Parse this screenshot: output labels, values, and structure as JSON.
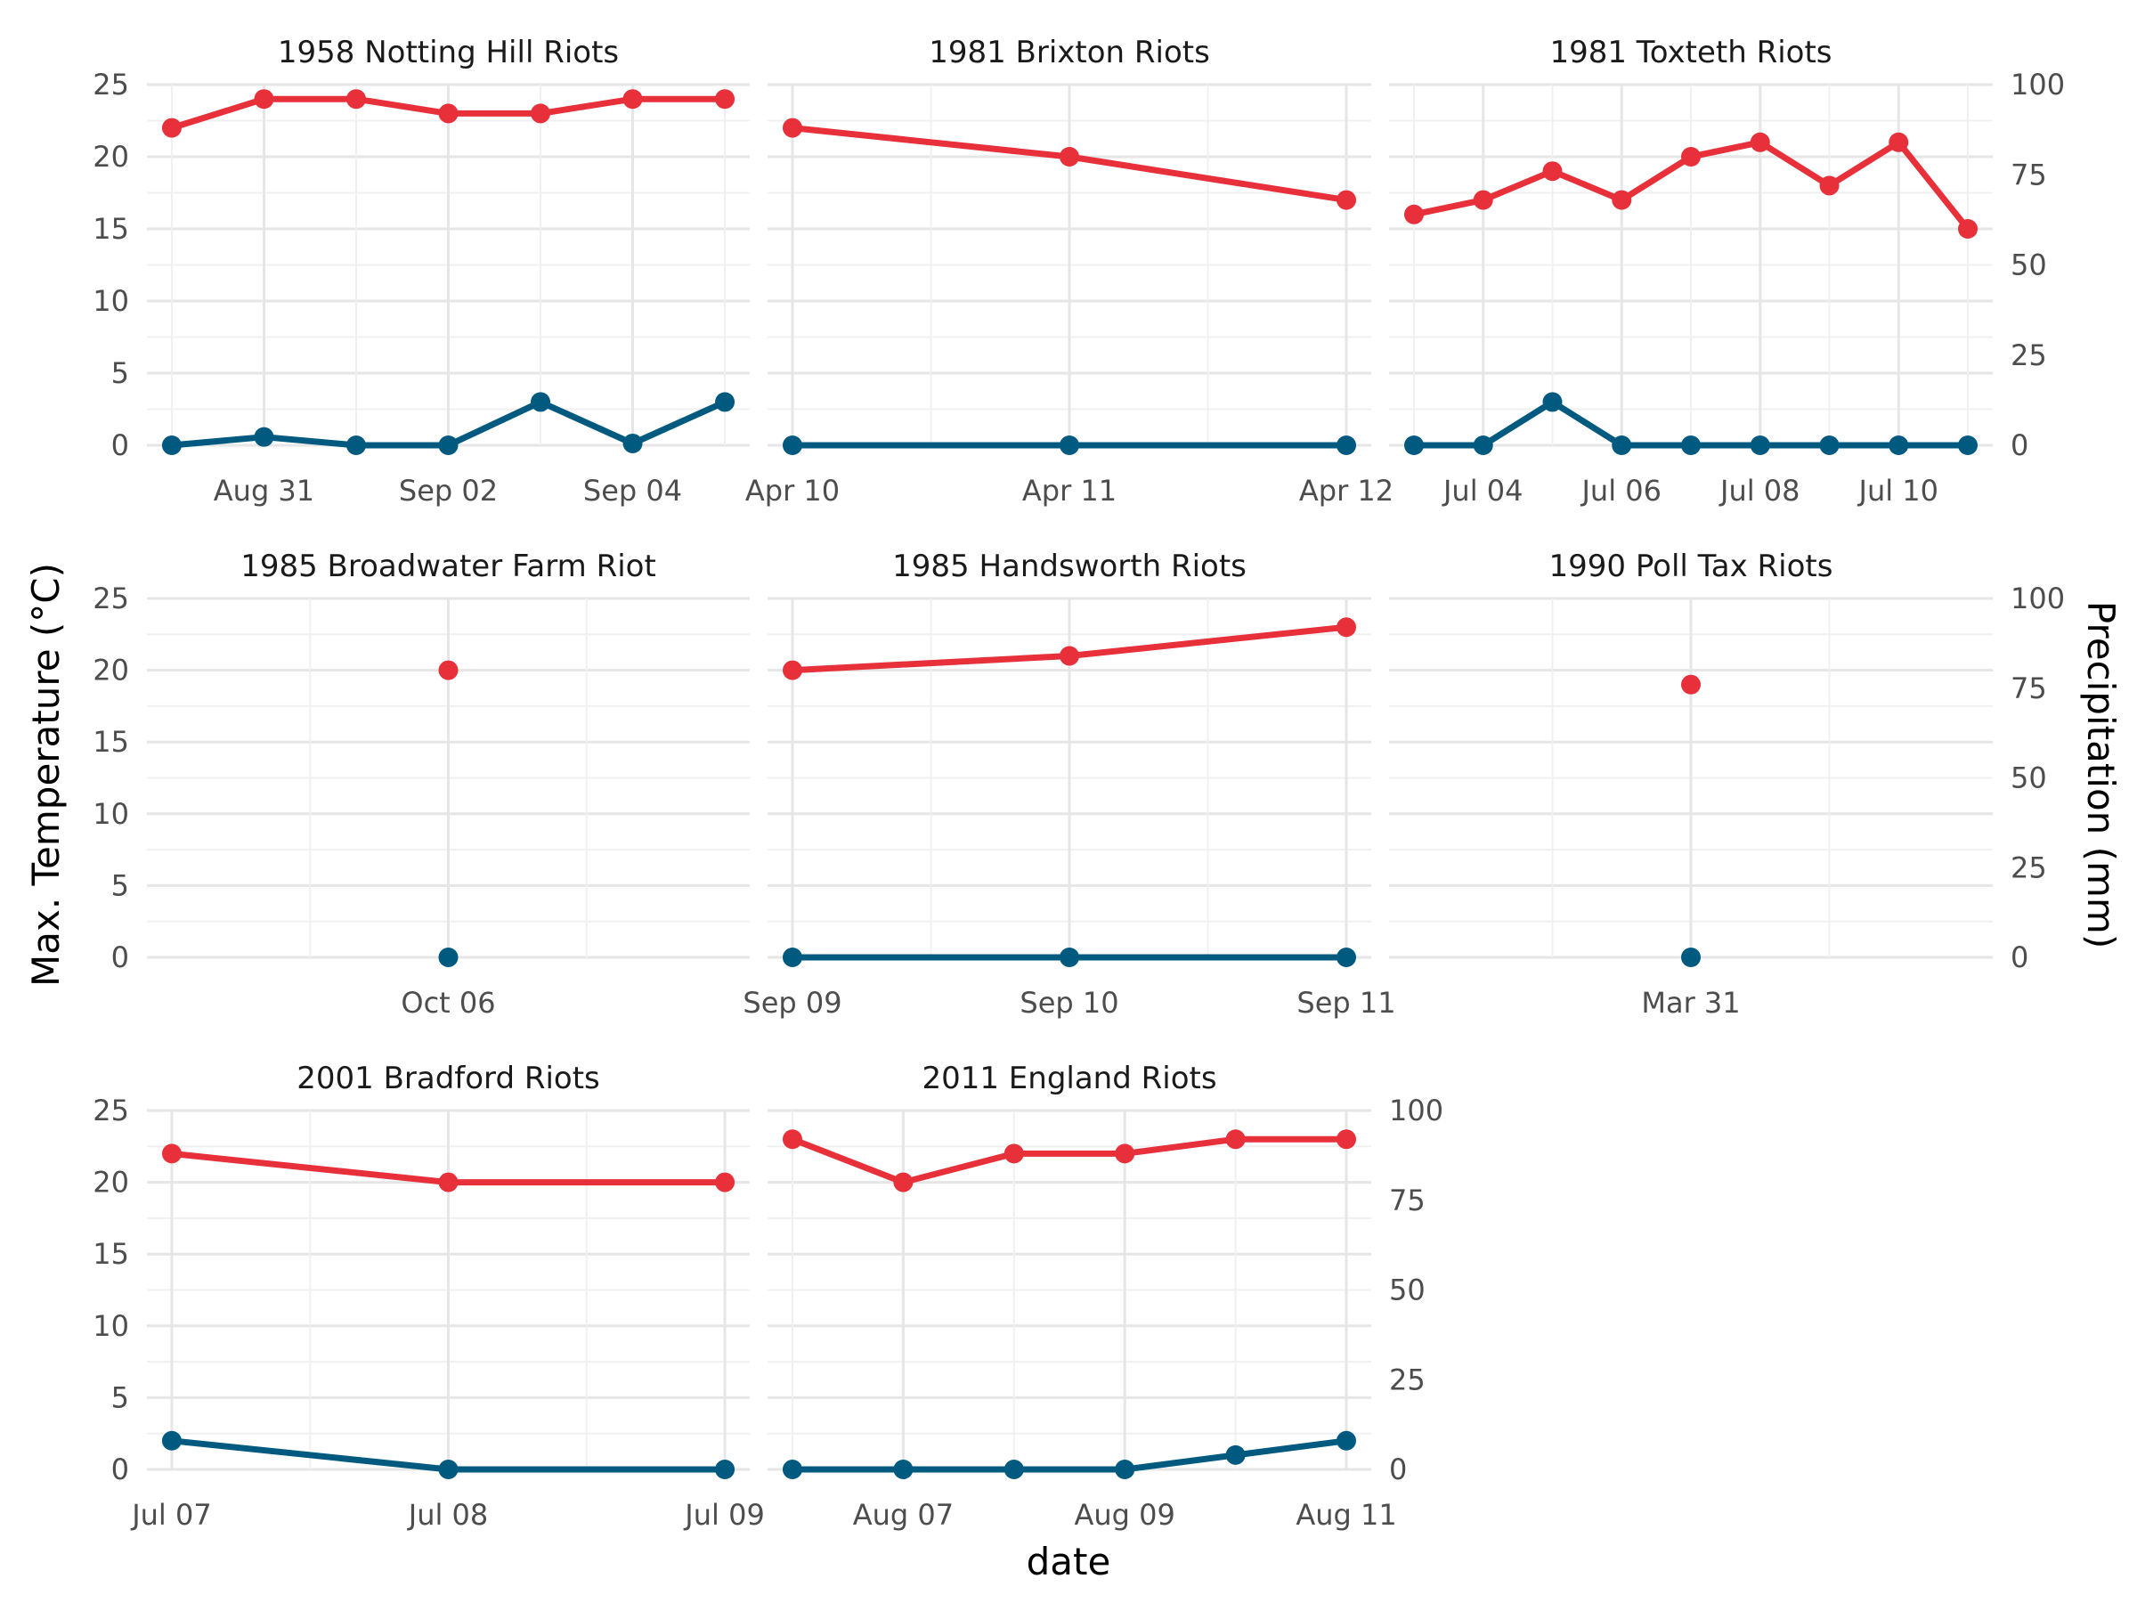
{
  "chart_data": {
    "type": "line",
    "xlabel": "date",
    "ylabel": "Max. Temperature (°C)",
    "y2label": "Precipitation (mm)",
    "ylim": [
      0,
      25
    ],
    "y2lim": [
      0,
      100
    ],
    "y_ticks": [
      "0",
      "5",
      "10",
      "15",
      "20",
      "25"
    ],
    "y2_ticks": [
      "0",
      "25",
      "50",
      "75",
      "100"
    ],
    "grid": true,
    "colors": {
      "temperature": "#e8303a",
      "precipitation": "#005a80"
    },
    "panels": [
      {
        "title": "1958 Notting Hill Riots",
        "x": [
          "1958-08-30",
          "1958-08-31",
          "1958-09-01",
          "1958-09-02",
          "1958-09-03",
          "1958-09-04",
          "1958-09-05"
        ],
        "x_ticks": [
          {
            "at": "1958-08-31",
            "label": "Aug 31"
          },
          {
            "at": "1958-09-02",
            "label": "Sep 02"
          },
          {
            "at": "1958-09-04",
            "label": "Sep 04"
          }
        ],
        "temperature": [
          22,
          24,
          24,
          23,
          23,
          24,
          24
        ],
        "precipitation": [
          0,
          2.3,
          0,
          0,
          12,
          0.5,
          12
        ]
      },
      {
        "title": "1981 Brixton Riots",
        "x": [
          "1981-04-10",
          "1981-04-11",
          "1981-04-12"
        ],
        "x_ticks": [
          {
            "at": "1981-04-10",
            "label": "Apr 10"
          },
          {
            "at": "1981-04-11",
            "label": "Apr 11"
          },
          {
            "at": "1981-04-12",
            "label": "Apr 12"
          }
        ],
        "temperature": [
          22,
          20,
          17
        ],
        "precipitation": [
          0,
          0,
          0
        ]
      },
      {
        "title": "1981 Toxteth Riots",
        "x": [
          "1981-07-03",
          "1981-07-04",
          "1981-07-05",
          "1981-07-06",
          "1981-07-07",
          "1981-07-08",
          "1981-07-09",
          "1981-07-10",
          "1981-07-11"
        ],
        "x_ticks": [
          {
            "at": "1981-07-04",
            "label": "Jul 04"
          },
          {
            "at": "1981-07-06",
            "label": "Jul 06"
          },
          {
            "at": "1981-07-08",
            "label": "Jul 08"
          },
          {
            "at": "1981-07-10",
            "label": "Jul 10"
          }
        ],
        "temperature": [
          16,
          17,
          19,
          17,
          20,
          21,
          18,
          21,
          15
        ],
        "precipitation": [
          0,
          0,
          12,
          0,
          0,
          0,
          0,
          0,
          0
        ]
      },
      {
        "title": "1985 Broadwater Farm Riot",
        "x": [
          "1985-10-06"
        ],
        "x_ticks": [
          {
            "at": "1985-10-06",
            "label": "Oct 06"
          }
        ],
        "temperature": [
          20
        ],
        "precipitation": [
          0
        ]
      },
      {
        "title": "1985 Handsworth Riots",
        "x": [
          "1985-09-09",
          "1985-09-10",
          "1985-09-11"
        ],
        "x_ticks": [
          {
            "at": "1985-09-09",
            "label": "Sep 09"
          },
          {
            "at": "1985-09-10",
            "label": "Sep 10"
          },
          {
            "at": "1985-09-11",
            "label": "Sep 11"
          }
        ],
        "temperature": [
          20,
          21,
          23
        ],
        "precipitation": [
          0,
          0,
          0
        ]
      },
      {
        "title": "1990 Poll Tax Riots",
        "x": [
          "1990-03-31"
        ],
        "x_ticks": [
          {
            "at": "1990-03-31",
            "label": "Mar 31"
          }
        ],
        "temperature": [
          19
        ],
        "precipitation": [
          0
        ]
      },
      {
        "title": "2001 Bradford Riots",
        "x": [
          "2001-07-07",
          "2001-07-08",
          "2001-07-09"
        ],
        "x_ticks": [
          {
            "at": "2001-07-07",
            "label": "Jul 07"
          },
          {
            "at": "2001-07-08",
            "label": "Jul 08"
          },
          {
            "at": "2001-07-09",
            "label": "Jul 09"
          }
        ],
        "temperature": [
          22,
          20,
          20
        ],
        "precipitation": [
          8,
          0,
          0
        ]
      },
      {
        "title": "2011 England Riots",
        "x": [
          "2011-08-06",
          "2011-08-07",
          "2011-08-08",
          "2011-08-09",
          "2011-08-10",
          "2011-08-11"
        ],
        "x_ticks": [
          {
            "at": "2011-08-07",
            "label": "Aug 07"
          },
          {
            "at": "2011-08-09",
            "label": "Aug 09"
          },
          {
            "at": "2011-08-11",
            "label": "Aug 11"
          }
        ],
        "temperature": [
          23,
          20,
          22,
          22,
          23,
          23
        ],
        "precipitation": [
          0,
          0,
          0,
          0,
          4,
          8
        ]
      }
    ]
  }
}
